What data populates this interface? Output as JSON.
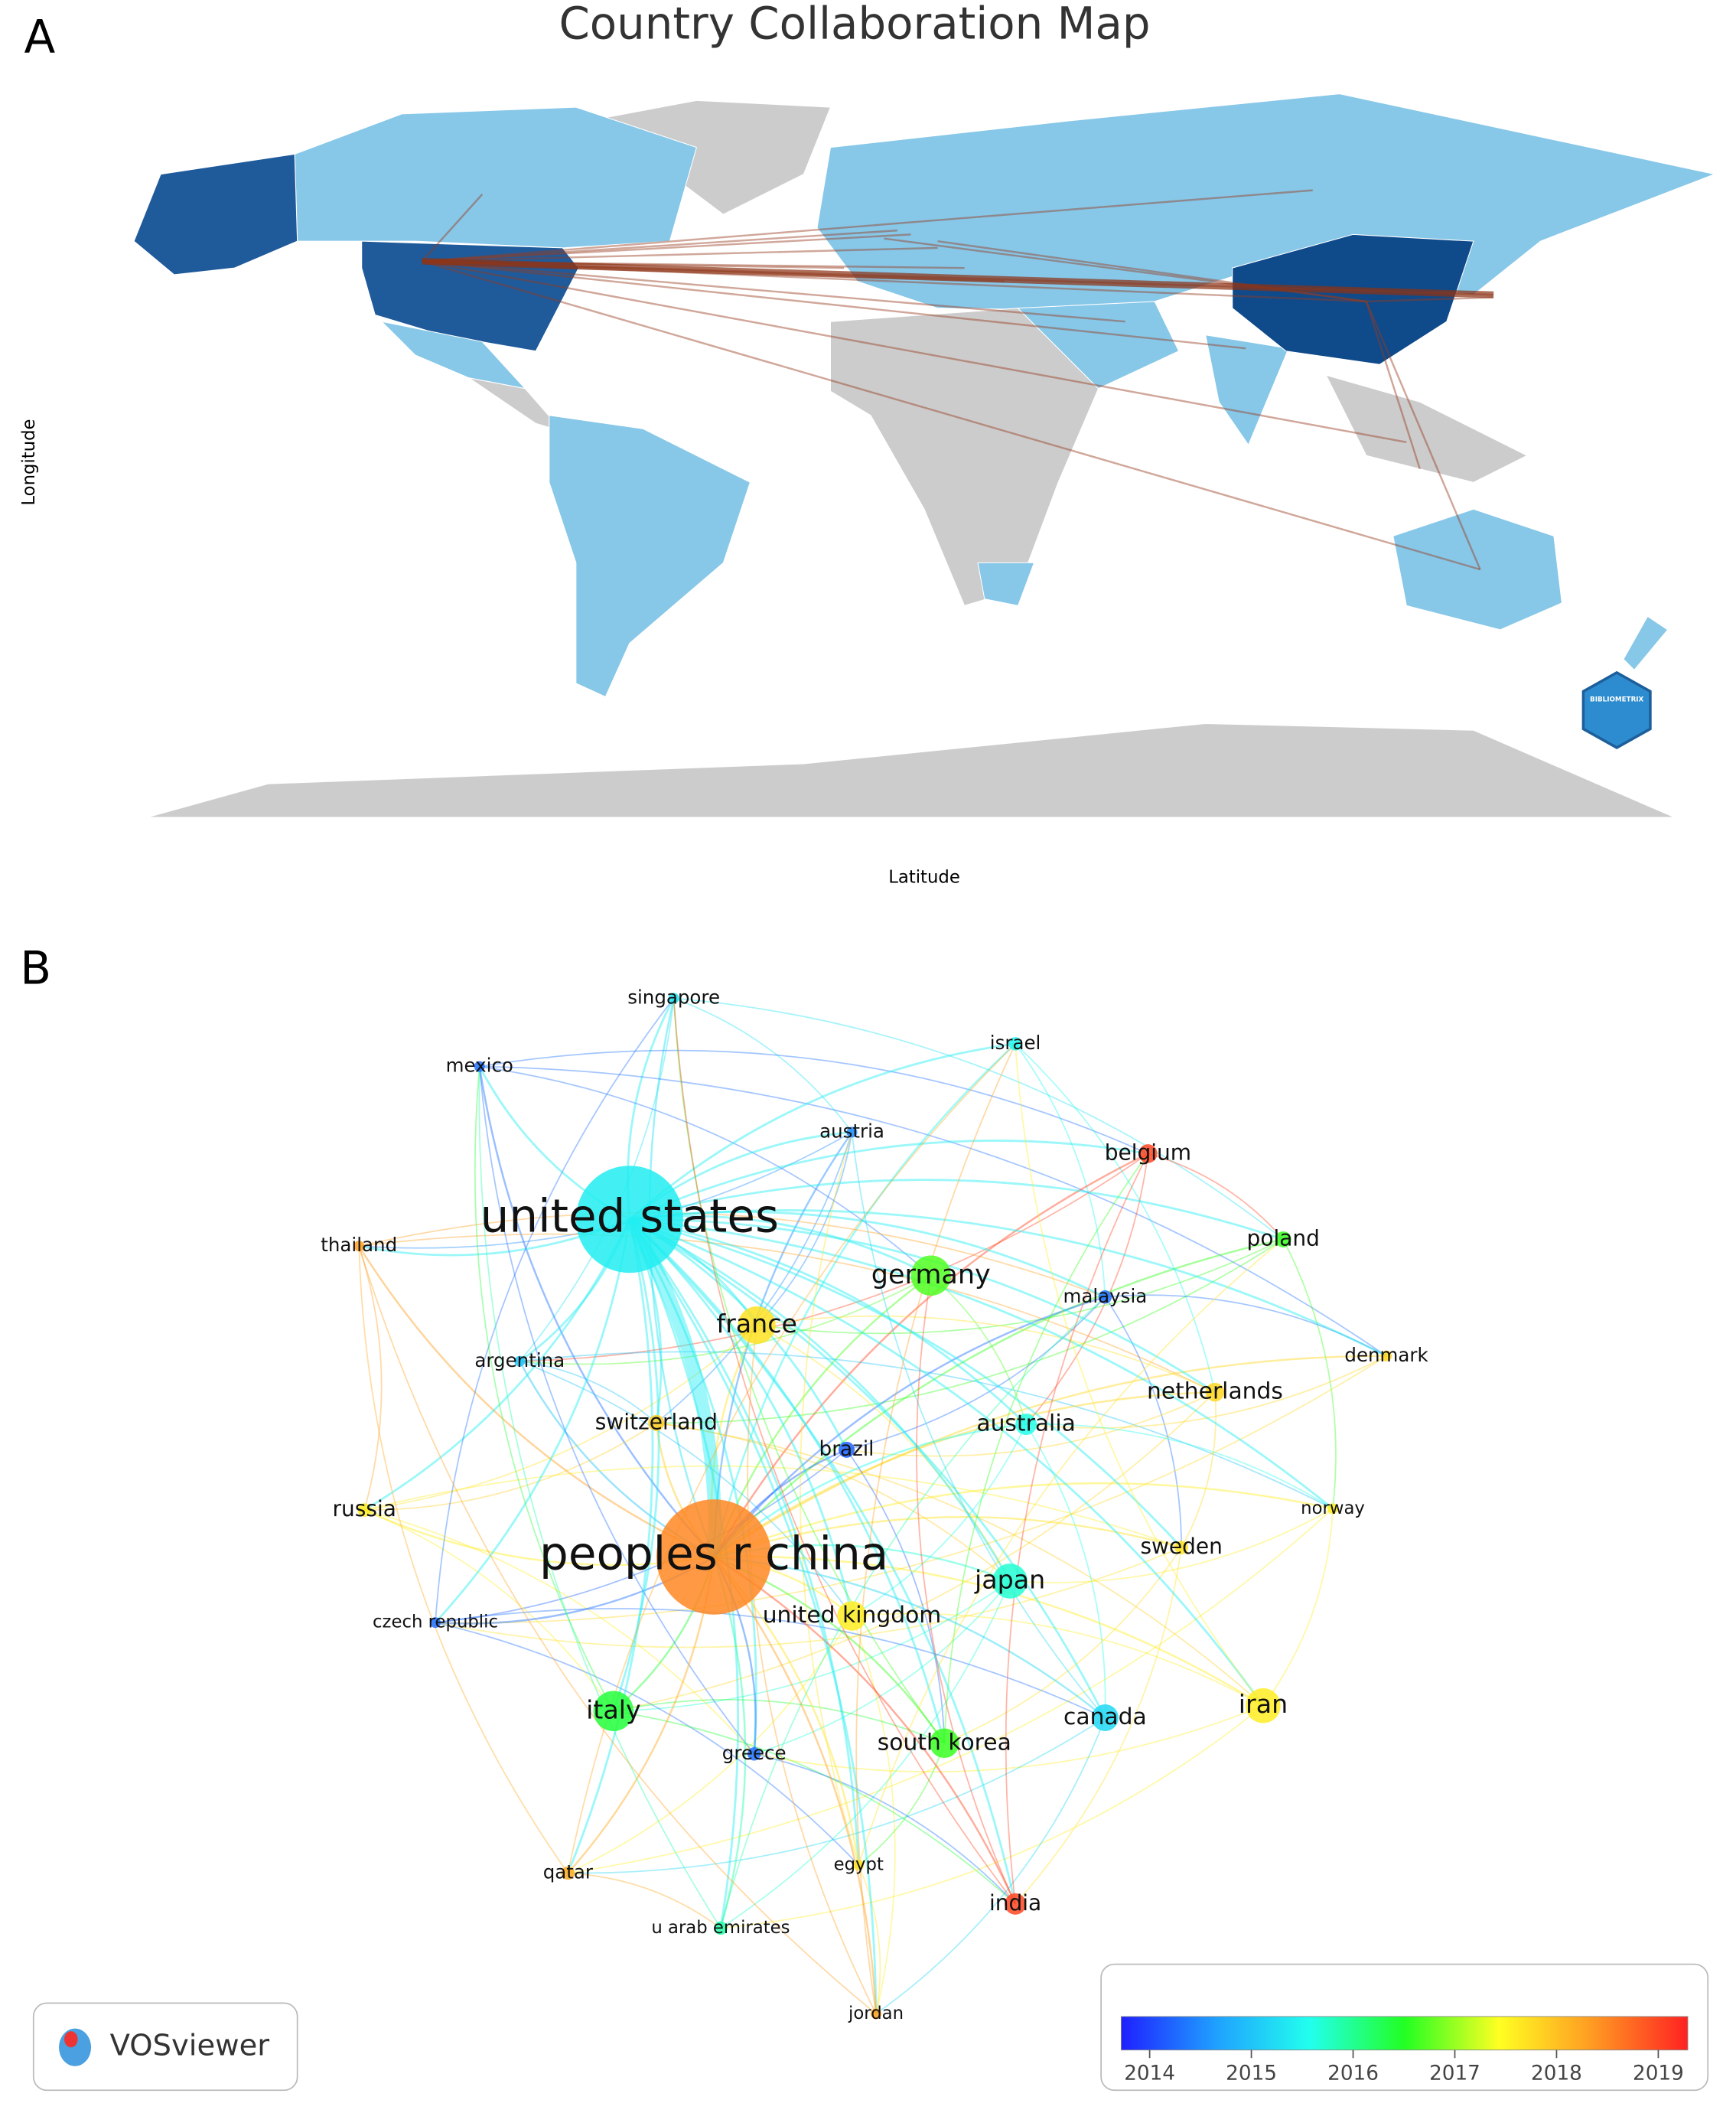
{
  "panel_a": {
    "label": "A",
    "title": "Country Collaboration Map",
    "y_label": "Longitude",
    "x_label": "Latitude",
    "logo": "BIBLIOMETRIX"
  },
  "panel_b": {
    "label": "B",
    "nodes": [
      {
        "label": "singapore",
        "year": 2015.3
      },
      {
        "label": "mexico",
        "year": 2014.3
      },
      {
        "label": "israel",
        "year": 2015.5
      },
      {
        "label": "austria",
        "year": 2014.5
      },
      {
        "label": "belgium",
        "year": 2019
      },
      {
        "label": "united states",
        "year": 2015.4
      },
      {
        "label": "thailand",
        "year": 2018.3
      },
      {
        "label": "poland",
        "year": 2016.6
      },
      {
        "label": "germany",
        "year": 2016.7
      },
      {
        "label": "malaysia",
        "year": 2014.3
      },
      {
        "label": "france",
        "year": 2017.7
      },
      {
        "label": "argentina",
        "year": 2015
      },
      {
        "label": "denmark",
        "year": 2017.8
      },
      {
        "label": "netherlands",
        "year": 2017.8
      },
      {
        "label": "switzerland",
        "year": 2017.9
      },
      {
        "label": "australia",
        "year": 2015.6
      },
      {
        "label": "brazil",
        "year": 2014.2
      },
      {
        "label": "russia",
        "year": 2017.6
      },
      {
        "label": "norway",
        "year": 2017.6
      },
      {
        "label": "peoples r china",
        "year": 2018.5
      },
      {
        "label": "sweden",
        "year": 2017.7
      },
      {
        "label": "japan",
        "year": 2015.7
      },
      {
        "label": "united kingdom",
        "year": 2017.6
      },
      {
        "label": "czech republic",
        "year": 2014.3
      },
      {
        "label": "italy",
        "year": 2016.4
      },
      {
        "label": "iran",
        "year": 2017.6
      },
      {
        "label": "canada",
        "year": 2015.2
      },
      {
        "label": "south korea",
        "year": 2016.6
      },
      {
        "label": "greece",
        "year": 2014.3
      },
      {
        "label": "qatar",
        "year": 2018.2
      },
      {
        "label": "egypt",
        "year": 2017.7
      },
      {
        "label": "india",
        "year": 2019
      },
      {
        "label": "u arab emirates",
        "year": 2015.9
      },
      {
        "label": "jordan",
        "year": 2018.3
      }
    ],
    "colorbar": {
      "lim": [
        2013.72,
        2019.29
      ],
      "ticks": [
        2014,
        2015,
        2016,
        2017,
        2018,
        2019
      ],
      "colors": [
        "#1f1fff",
        "#1fa0ff",
        "#22ffee",
        "#22ff22",
        "#ffff22",
        "#ff9922",
        "#ff2222"
      ]
    },
    "logo": "VOSviewer"
  }
}
